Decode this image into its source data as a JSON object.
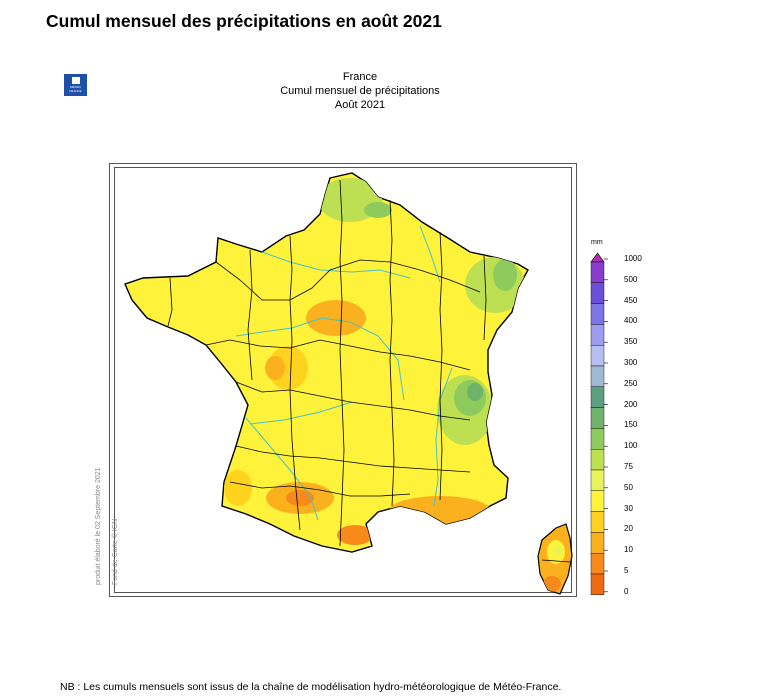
{
  "page": {
    "title": "Cumul mensuel des précipitations en août 2021",
    "note": "NB : Les cumuls mensuels sont issus de la chaîne de modélisation hydro-météorologique de Météo-France."
  },
  "logo": {
    "text": "MÉTÉO FRANCE"
  },
  "map": {
    "header_line1": "France",
    "header_line2": "Cumul mensuel de précipitations",
    "header_line3": "Août 2021",
    "credit_produced": "produit élaboré le 02 Septembre 2021",
    "credit_basemap": "Fond de Carte © IGN"
  },
  "legend": {
    "unit": "mm",
    "classes": [
      {
        "label": "1000",
        "color": "#b02fa8"
      },
      {
        "label": "500",
        "color": "#8a3ccf"
      },
      {
        "label": "450",
        "color": "#6a4fd9"
      },
      {
        "label": "400",
        "color": "#7d74e6"
      },
      {
        "label": "350",
        "color": "#9c9cf0"
      },
      {
        "label": "300",
        "color": "#b5bff0"
      },
      {
        "label": "250",
        "color": "#9fb9d3"
      },
      {
        "label": "200",
        "color": "#5aa080"
      },
      {
        "label": "150",
        "color": "#6fb26a"
      },
      {
        "label": "100",
        "color": "#8fca5c"
      },
      {
        "label": "75",
        "color": "#bde052"
      },
      {
        "label": "50",
        "color": "#e8f25a"
      },
      {
        "label": "30",
        "color": "#fff23a"
      },
      {
        "label": "20",
        "color": "#ffd21e"
      },
      {
        "label": "10",
        "color": "#fbb01e"
      },
      {
        "label": "5",
        "color": "#f88a1c"
      },
      {
        "label": "0",
        "color": "#f06a14"
      }
    ]
  }
}
